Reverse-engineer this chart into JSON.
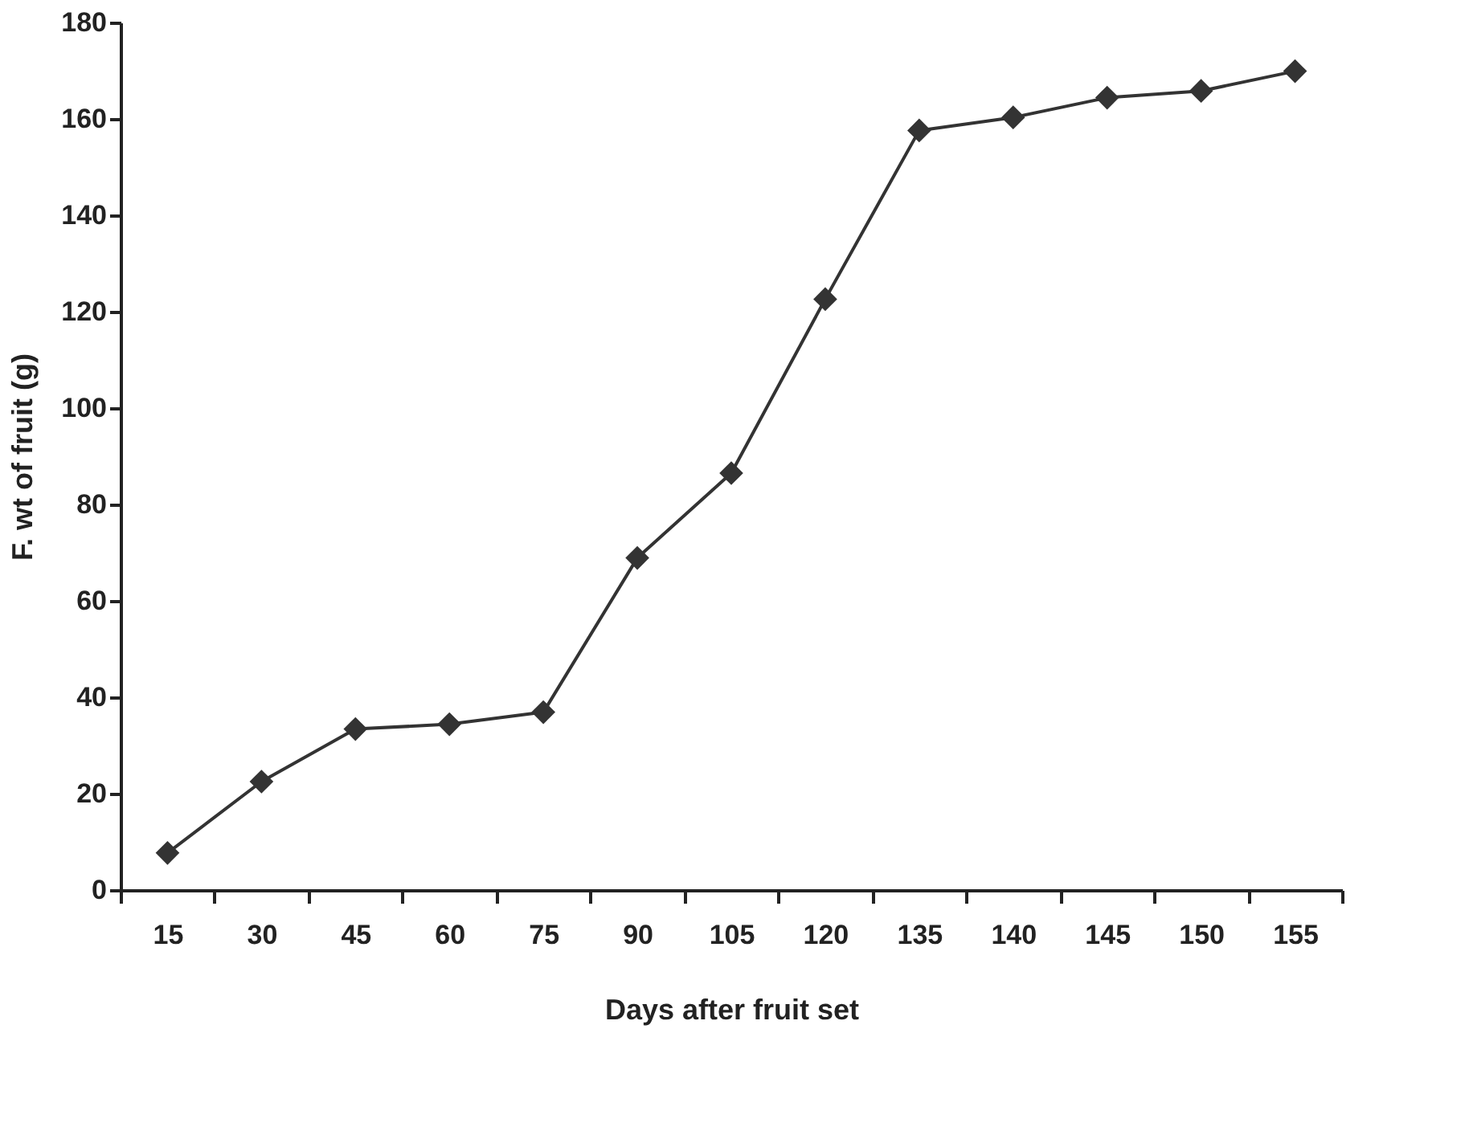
{
  "chart_data": {
    "type": "line",
    "xlabel": "Days after fruit set",
    "ylabel": "F. wt of fruit (g)",
    "categories": [
      "15",
      "30",
      "45",
      "60",
      "75",
      "90",
      "105",
      "120",
      "135",
      "140",
      "145",
      "150",
      "155"
    ],
    "series": [
      {
        "color": "#333333",
        "values": [
          7.7,
          22.5,
          33.4,
          34.4,
          36.9,
          68.9,
          86.5,
          122.6,
          157.6,
          160.3,
          164.4,
          165.8,
          169.9
        ]
      }
    ],
    "ylim": [
      0,
      180
    ],
    "yticks": [
      0,
      20,
      40,
      60,
      80,
      100,
      120,
      140,
      160,
      180
    ],
    "grid": false,
    "marker": "diamond",
    "line_style": "solid"
  }
}
